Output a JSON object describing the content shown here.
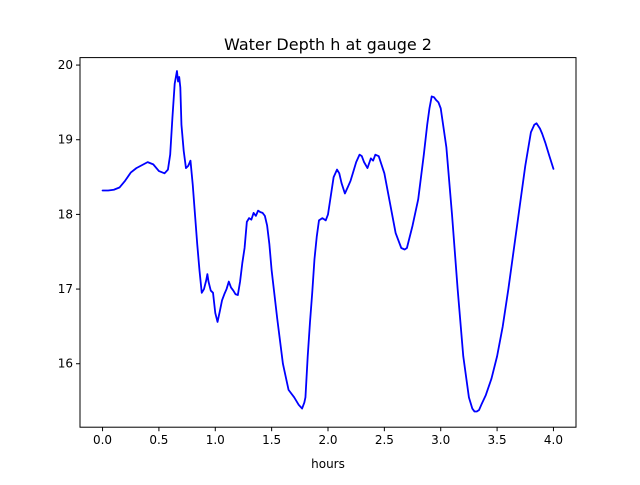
{
  "chart_data": {
    "type": "line",
    "title": "Water Depth h at gauge 2",
    "xlabel": "hours",
    "ylabel": "",
    "xlim": [
      -0.2,
      4.2
    ],
    "ylim": [
      15.15,
      20.1
    ],
    "xticks": [
      0.0,
      0.5,
      1.0,
      1.5,
      2.0,
      2.5,
      3.0,
      3.5,
      4.0
    ],
    "xtick_labels": [
      "0.0",
      "0.5",
      "1.0",
      "1.5",
      "2.0",
      "2.5",
      "3.0",
      "3.5",
      "4.0"
    ],
    "yticks": [
      16,
      17,
      18,
      19,
      20
    ],
    "ytick_labels": [
      "16",
      "17",
      "18",
      "19",
      "20"
    ],
    "grid": false,
    "series": [
      {
        "color": "#0000ff",
        "x": [
          0.0,
          0.05,
          0.1,
          0.15,
          0.2,
          0.25,
          0.3,
          0.35,
          0.4,
          0.45,
          0.5,
          0.55,
          0.58,
          0.6,
          0.62,
          0.64,
          0.66,
          0.67,
          0.68,
          0.69,
          0.7,
          0.72,
          0.74,
          0.76,
          0.78,
          0.8,
          0.82,
          0.84,
          0.86,
          0.88,
          0.9,
          0.92,
          0.93,
          0.94,
          0.96,
          0.98,
          1.0,
          1.02,
          1.04,
          1.06,
          1.08,
          1.1,
          1.12,
          1.14,
          1.16,
          1.18,
          1.2,
          1.22,
          1.24,
          1.26,
          1.28,
          1.3,
          1.32,
          1.34,
          1.36,
          1.38,
          1.4,
          1.42,
          1.44,
          1.46,
          1.48,
          1.5,
          1.55,
          1.6,
          1.65,
          1.7,
          1.74,
          1.77,
          1.79,
          1.8,
          1.82,
          1.84,
          1.86,
          1.88,
          1.9,
          1.92,
          1.95,
          1.98,
          2.0,
          2.02,
          2.05,
          2.08,
          2.1,
          2.12,
          2.15,
          2.18,
          2.2,
          2.22,
          2.25,
          2.28,
          2.3,
          2.32,
          2.35,
          2.38,
          2.4,
          2.42,
          2.45,
          2.5,
          2.55,
          2.6,
          2.65,
          2.68,
          2.7,
          2.75,
          2.8,
          2.85,
          2.88,
          2.9,
          2.92,
          2.94,
          2.96,
          2.98,
          3.0,
          3.05,
          3.1,
          3.15,
          3.2,
          3.25,
          3.28,
          3.3,
          3.32,
          3.34,
          3.36,
          3.4,
          3.45,
          3.5,
          3.55,
          3.6,
          3.65,
          3.7,
          3.75,
          3.8,
          3.83,
          3.85,
          3.88,
          3.9,
          3.93,
          3.96,
          4.0
        ],
        "y": [
          18.32,
          18.32,
          18.33,
          18.36,
          18.45,
          18.56,
          18.62,
          18.66,
          18.7,
          18.67,
          18.58,
          18.55,
          18.6,
          18.8,
          19.3,
          19.75,
          19.92,
          19.78,
          19.84,
          19.7,
          19.2,
          18.85,
          18.62,
          18.65,
          18.72,
          18.4,
          18.0,
          17.6,
          17.25,
          16.95,
          17.0,
          17.12,
          17.2,
          17.1,
          16.98,
          16.95,
          16.68,
          16.56,
          16.7,
          16.85,
          16.93,
          17.0,
          17.1,
          17.02,
          16.98,
          16.93,
          16.92,
          17.1,
          17.35,
          17.55,
          17.9,
          17.95,
          17.93,
          18.02,
          17.98,
          18.05,
          18.03,
          18.02,
          17.98,
          17.85,
          17.6,
          17.25,
          16.6,
          16.0,
          15.65,
          15.55,
          15.45,
          15.4,
          15.48,
          15.55,
          16.1,
          16.55,
          16.95,
          17.4,
          17.7,
          17.92,
          17.95,
          17.92,
          18.0,
          18.2,
          18.5,
          18.6,
          18.55,
          18.42,
          18.28,
          18.38,
          18.45,
          18.55,
          18.7,
          18.8,
          18.78,
          18.7,
          18.62,
          18.75,
          18.72,
          18.8,
          18.78,
          18.55,
          18.15,
          17.75,
          17.55,
          17.53,
          17.55,
          17.85,
          18.2,
          18.8,
          19.2,
          19.42,
          19.58,
          19.57,
          19.53,
          19.5,
          19.42,
          18.9,
          18.0,
          17.0,
          16.1,
          15.55,
          15.4,
          15.36,
          15.36,
          15.38,
          15.45,
          15.58,
          15.8,
          16.1,
          16.5,
          17.0,
          17.55,
          18.1,
          18.65,
          19.1,
          19.2,
          19.22,
          19.15,
          19.08,
          18.95,
          18.8,
          18.61
        ]
      }
    ]
  }
}
